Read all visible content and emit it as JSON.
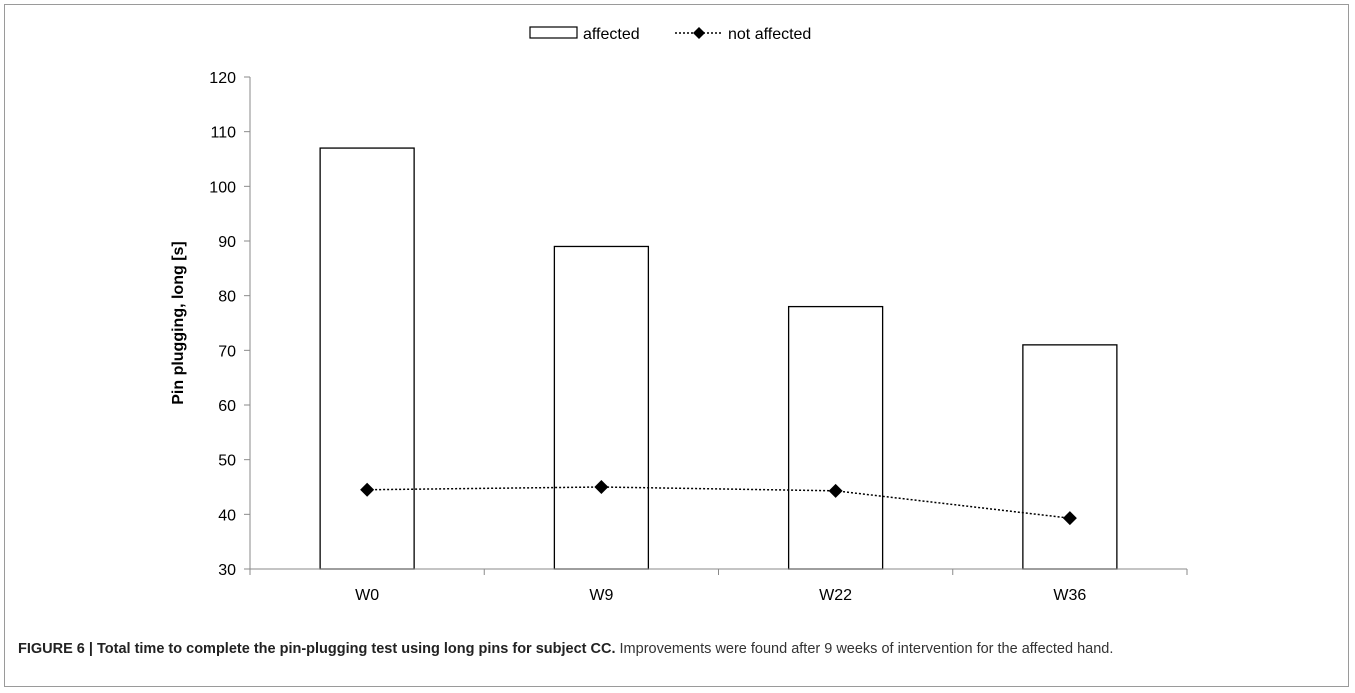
{
  "chart_data": {
    "type": "bar",
    "categories": [
      "W0",
      "W9",
      "W22",
      "W36"
    ],
    "series": [
      {
        "name": "affected",
        "type": "bar",
        "values": [
          107,
          89,
          78,
          71
        ],
        "fill": "#ffffff",
        "stroke": "#000000"
      },
      {
        "name": "not affected",
        "type": "line",
        "values": [
          44.5,
          45,
          44.3,
          39.3
        ],
        "line_style": "dotted",
        "marker": "diamond",
        "color": "#000000"
      }
    ],
    "title": "",
    "xlabel": "",
    "ylabel": "Pin plugging, long [s]",
    "ylim": [
      30,
      120
    ],
    "yticks": [
      30,
      40,
      50,
      60,
      70,
      80,
      90,
      100,
      110,
      120
    ],
    "grid": false,
    "legend_position": "top-center"
  },
  "caption": {
    "bold": "FIGURE 6 | Total time to complete the pin-plugging test using long pins for subject CC.",
    "text": " Improvements were found after 9 weeks of intervention for the affected hand."
  }
}
